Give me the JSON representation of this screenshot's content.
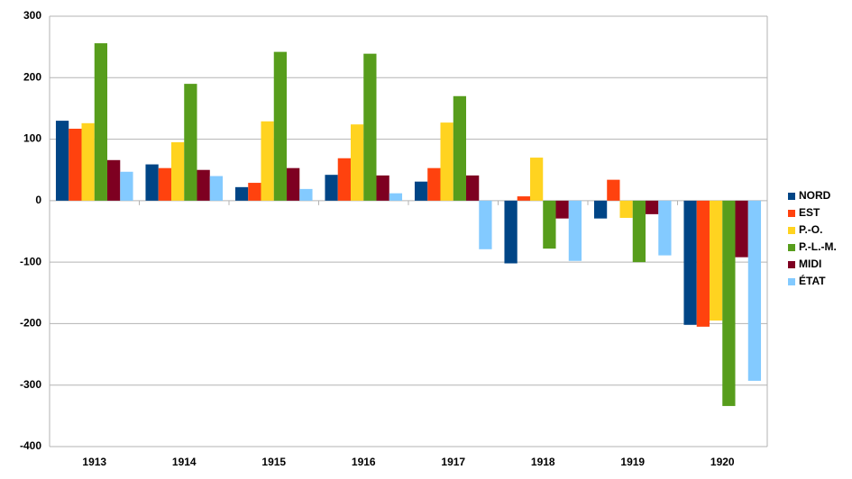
{
  "chart_data": {
    "type": "bar",
    "categories": [
      "1913",
      "1914",
      "1915",
      "1916",
      "1917",
      "1918",
      "1919",
      "1920"
    ],
    "series": [
      {
        "name": "NORD",
        "color": "#004586",
        "values": [
          130,
          59,
          22,
          42,
          31,
          -102,
          -29,
          -202
        ]
      },
      {
        "name": "EST",
        "color": "#ff420e",
        "values": [
          117,
          53,
          29,
          69,
          53,
          7,
          34,
          -205
        ]
      },
      {
        "name": "P.-O.",
        "color": "#ffd320",
        "values": [
          126,
          95,
          129,
          124,
          127,
          70,
          -28,
          -195
        ]
      },
      {
        "name": "P.-L.-M.",
        "color": "#579d1c",
        "values": [
          256,
          190,
          242,
          239,
          170,
          -78,
          -100,
          -334
        ]
      },
      {
        "name": "MIDI",
        "color": "#7e0021",
        "values": [
          66,
          50,
          53,
          41,
          41,
          -29,
          -22,
          -92
        ]
      },
      {
        "name": "ÉTAT",
        "color": "#83caff",
        "values": [
          47,
          40,
          19,
          12,
          -79,
          -98,
          -89,
          -293
        ]
      }
    ],
    "ylim": [
      -400,
      300
    ],
    "yticks": [
      -400,
      -300,
      -200,
      -100,
      0,
      100,
      200,
      300
    ],
    "grid": true,
    "legend": "right"
  }
}
